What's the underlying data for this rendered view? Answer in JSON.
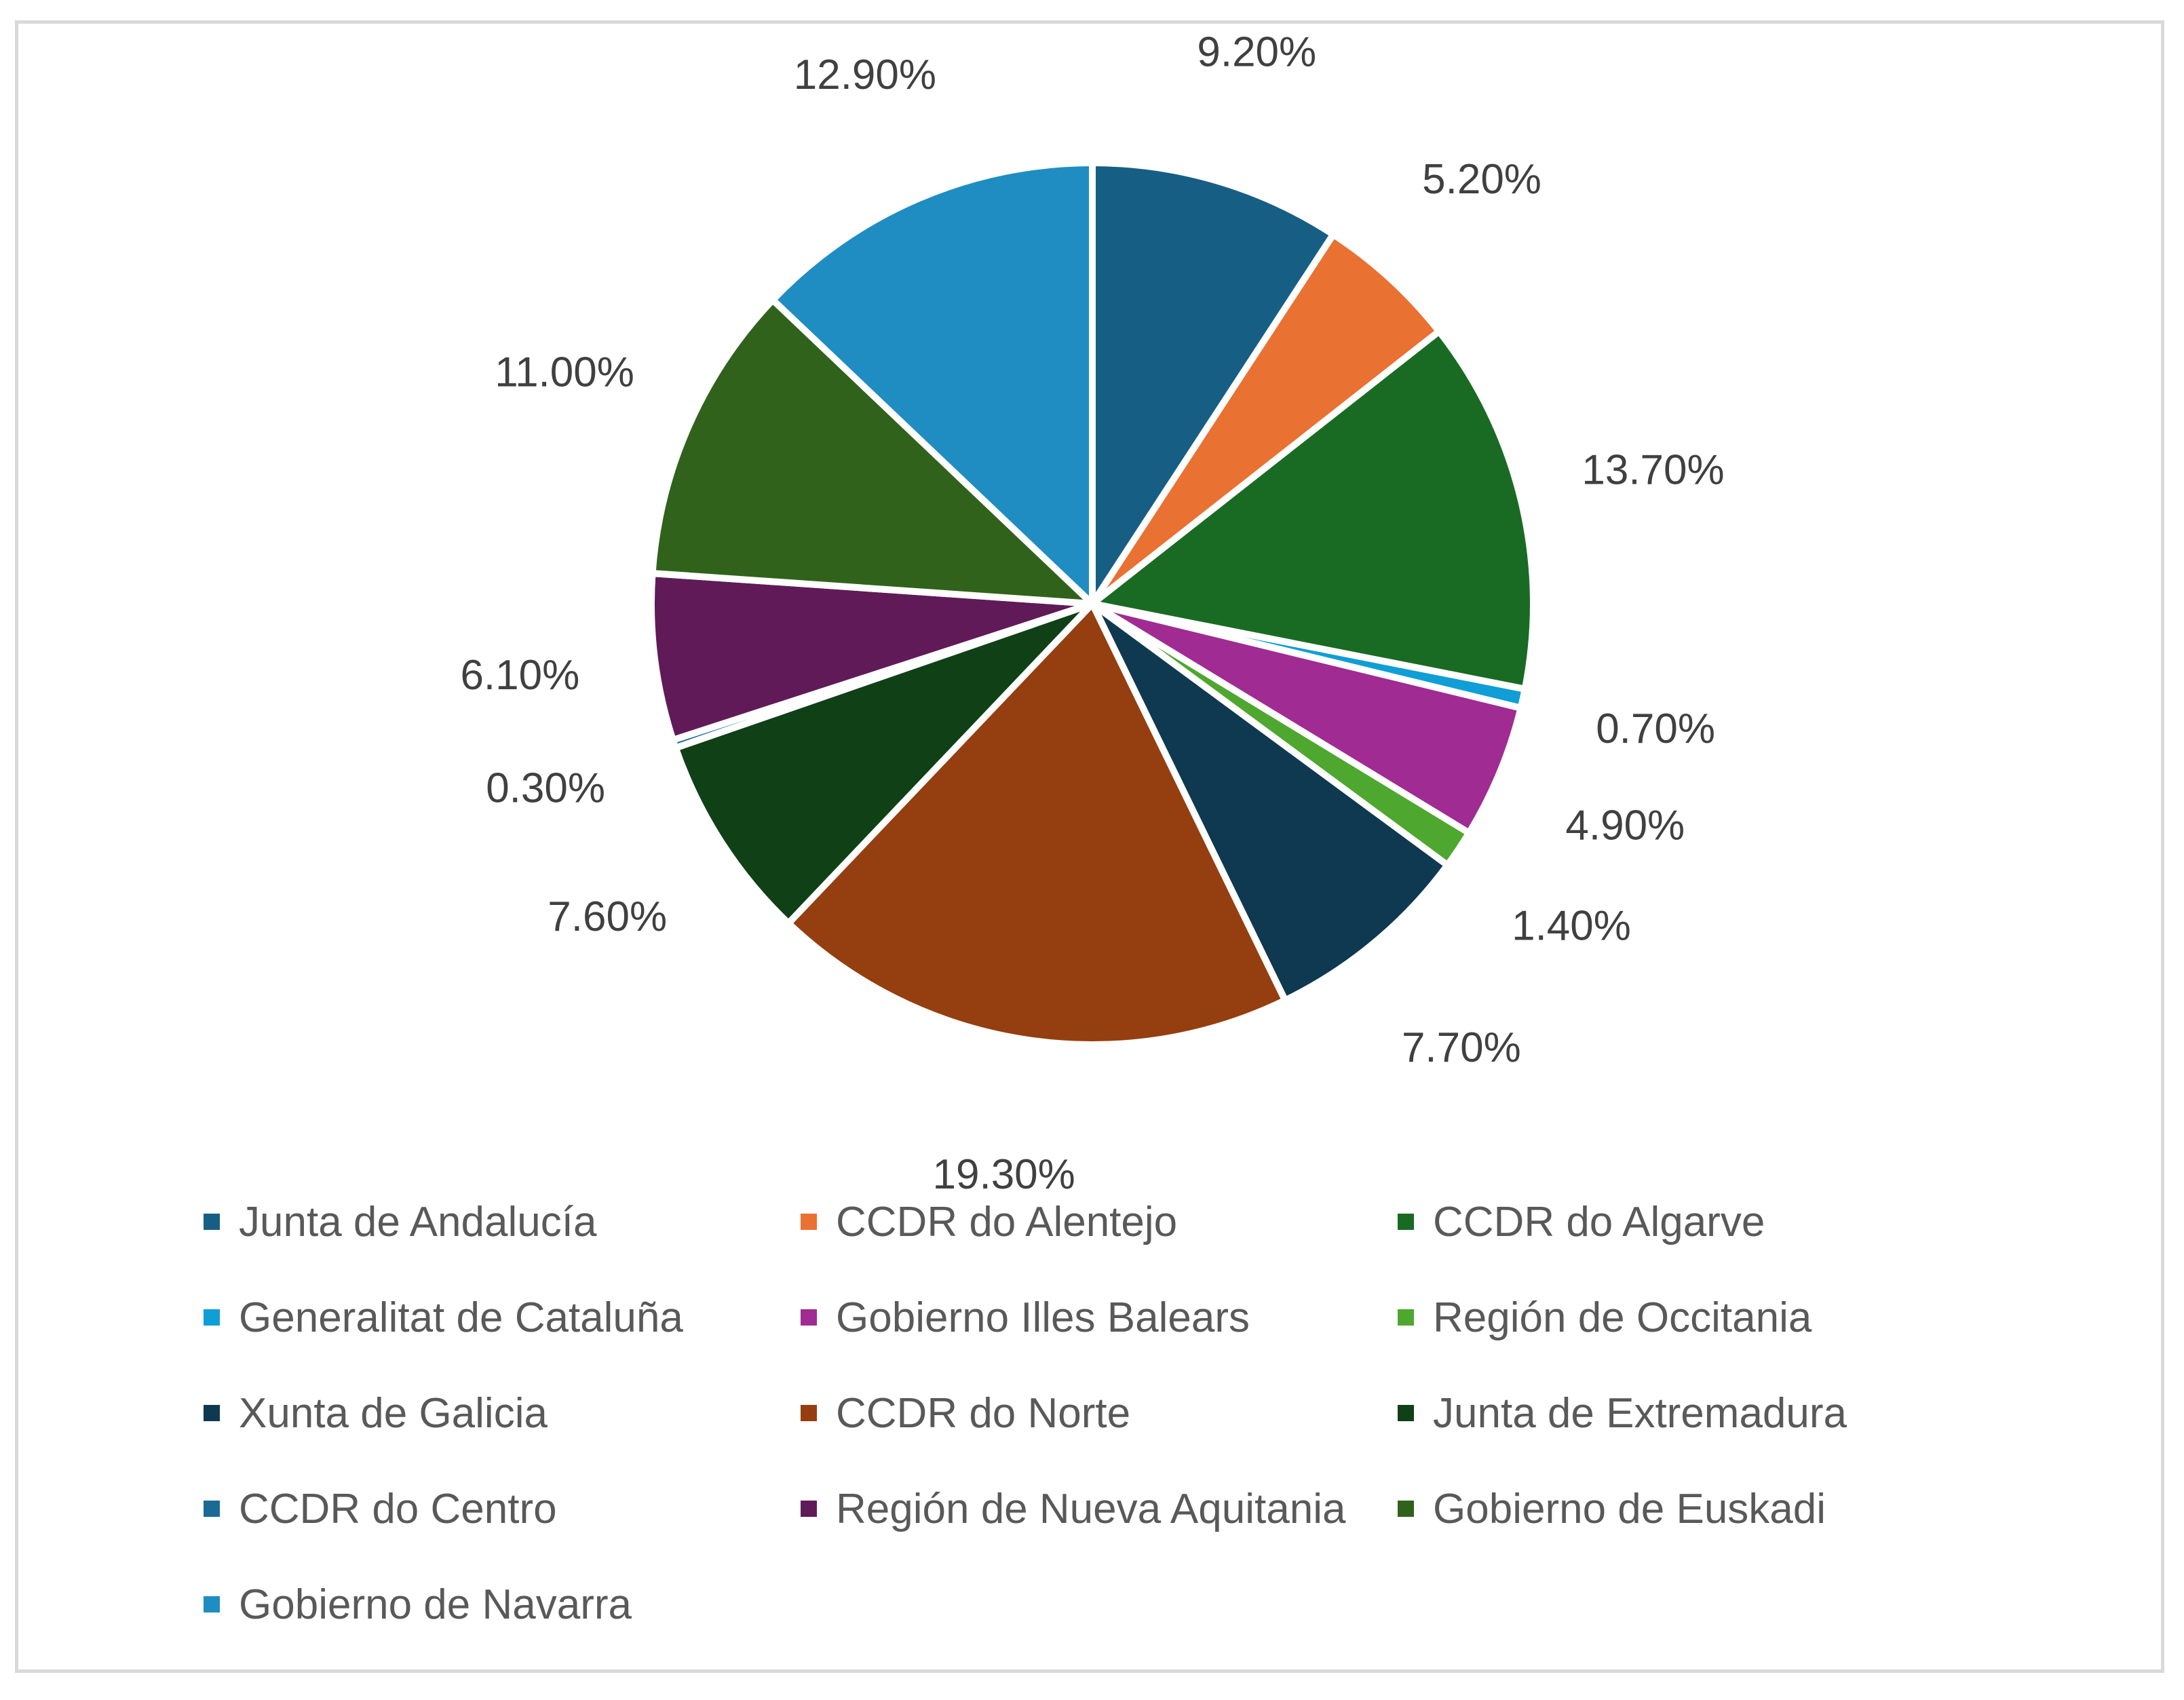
{
  "chart_data": {
    "type": "pie",
    "title": "",
    "slices": [
      {
        "label": "Junta de Andalucía",
        "value": 9.2,
        "display": "9.20%",
        "color": "#175e85"
      },
      {
        "label": "CCDR do Alentejo",
        "value": 5.2,
        "display": "5.20%",
        "color": "#e97132"
      },
      {
        "label": "CCDR do Algarve",
        "value": 13.7,
        "display": "13.70%",
        "color": "#196b24"
      },
      {
        "label": "Generalitat de Cataluña",
        "value": 0.7,
        "display": "0.70%",
        "color": "#0f9ed5"
      },
      {
        "label": "Gobierno Illes Balears",
        "value": 4.9,
        "display": "4.90%",
        "color": "#a02b93"
      },
      {
        "label": "Región de Occitania",
        "value": 1.4,
        "display": "1.40%",
        "color": "#4ea72e"
      },
      {
        "label": "Xunta de Galicia",
        "value": 7.7,
        "display": "7.70%",
        "color": "#0e3950"
      },
      {
        "label": "CCDR do Norte",
        "value": 19.3,
        "display": "19.30%",
        "color": "#953e0f"
      },
      {
        "label": "Junta de Extremadura",
        "value": 7.6,
        "display": "7.60%",
        "color": "#0f4016"
      },
      {
        "label": "CCDR do Centro",
        "value": 0.3,
        "display": "0.30%",
        "color": "#1b6a94"
      },
      {
        "label": "Región de Nueva Aquitania",
        "value": 6.1,
        "display": "6.10%",
        "color": "#601a57"
      },
      {
        "label": "Gobierno de Euskadi",
        "value": 11.0,
        "display": "11.00%",
        "color": "#30621c"
      },
      {
        "label": "Gobierno de Navarra",
        "value": 12.9,
        "display": "12.90%",
        "color": "#1f8dc2"
      }
    ],
    "legend_position": "bottom"
  }
}
